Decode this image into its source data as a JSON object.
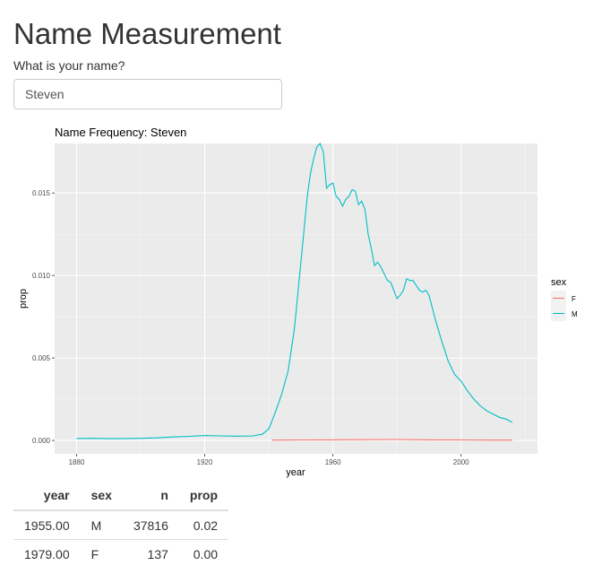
{
  "page": {
    "title": "Name Measurement",
    "input_label": "What is your name?",
    "input_value": "Steven"
  },
  "chart_data": {
    "type": "line",
    "title": "Name Frequency: Steven",
    "xlabel": "year",
    "ylabel": "prop",
    "xlim": [
      1880,
      2017
    ],
    "ylim": [
      0,
      0.018
    ],
    "x_ticks": [
      1880,
      1920,
      1960,
      2000
    ],
    "y_ticks": [
      0.0,
      0.005,
      0.01,
      0.015
    ],
    "y_tick_labels": [
      "0.000",
      "0.005",
      "0.010",
      "0.015"
    ],
    "grid": true,
    "legend": {
      "title": "sex",
      "position": "right"
    },
    "series": [
      {
        "name": "F",
        "color": "#F8766D",
        "x": [
          1941,
          1950,
          1960,
          1970,
          1979,
          1985,
          1990,
          2000,
          2010,
          2016
        ],
        "y": [
          2e-05,
          3e-05,
          4e-05,
          5e-05,
          6e-05,
          5e-05,
          4e-05,
          3e-05,
          2e-05,
          2e-05
        ]
      },
      {
        "name": "M",
        "color": "#00BFC4",
        "x": [
          1880,
          1885,
          1890,
          1895,
          1900,
          1905,
          1910,
          1915,
          1920,
          1925,
          1930,
          1935,
          1938,
          1940,
          1942,
          1944,
          1946,
          1948,
          1950,
          1952,
          1953,
          1954,
          1955,
          1956,
          1957,
          1958,
          1959,
          1960,
          1961,
          1962,
          1963,
          1964,
          1965,
          1966,
          1967,
          1968,
          1969,
          1970,
          1971,
          1972,
          1973,
          1974,
          1975,
          1976,
          1977,
          1978,
          1979,
          1980,
          1981,
          1982,
          1983,
          1984,
          1985,
          1986,
          1987,
          1988,
          1989,
          1990,
          1992,
          1994,
          1996,
          1998,
          2000,
          2002,
          2004,
          2006,
          2008,
          2010,
          2012,
          2014,
          2016
        ],
        "y": [
          0.00012,
          0.00013,
          0.00011,
          0.00012,
          0.00013,
          0.00016,
          0.00021,
          0.00025,
          0.0003,
          0.00028,
          0.00026,
          0.00028,
          0.00038,
          0.0007,
          0.0017,
          0.0028,
          0.0042,
          0.0068,
          0.0108,
          0.0148,
          0.0162,
          0.0171,
          0.0178,
          0.018,
          0.0175,
          0.0153,
          0.0155,
          0.0156,
          0.0148,
          0.0146,
          0.0142,
          0.0146,
          0.0148,
          0.0152,
          0.0151,
          0.0143,
          0.0145,
          0.014,
          0.0125,
          0.0116,
          0.0106,
          0.0108,
          0.0105,
          0.0101,
          0.0097,
          0.0096,
          0.0091,
          0.0086,
          0.0088,
          0.0091,
          0.0098,
          0.0097,
          0.0097,
          0.0094,
          0.0091,
          0.009,
          0.0091,
          0.0088,
          0.0073,
          0.006,
          0.0048,
          0.004,
          0.0036,
          0.003,
          0.0025,
          0.0021,
          0.0018,
          0.0016,
          0.0014,
          0.0013,
          0.0011
        ]
      }
    ]
  },
  "table": {
    "columns": [
      "year",
      "sex",
      "n",
      "prop"
    ],
    "rows": [
      [
        "1955.00",
        "M",
        "37816",
        "0.02"
      ],
      [
        "1979.00",
        "F",
        "137",
        "0.00"
      ]
    ]
  }
}
